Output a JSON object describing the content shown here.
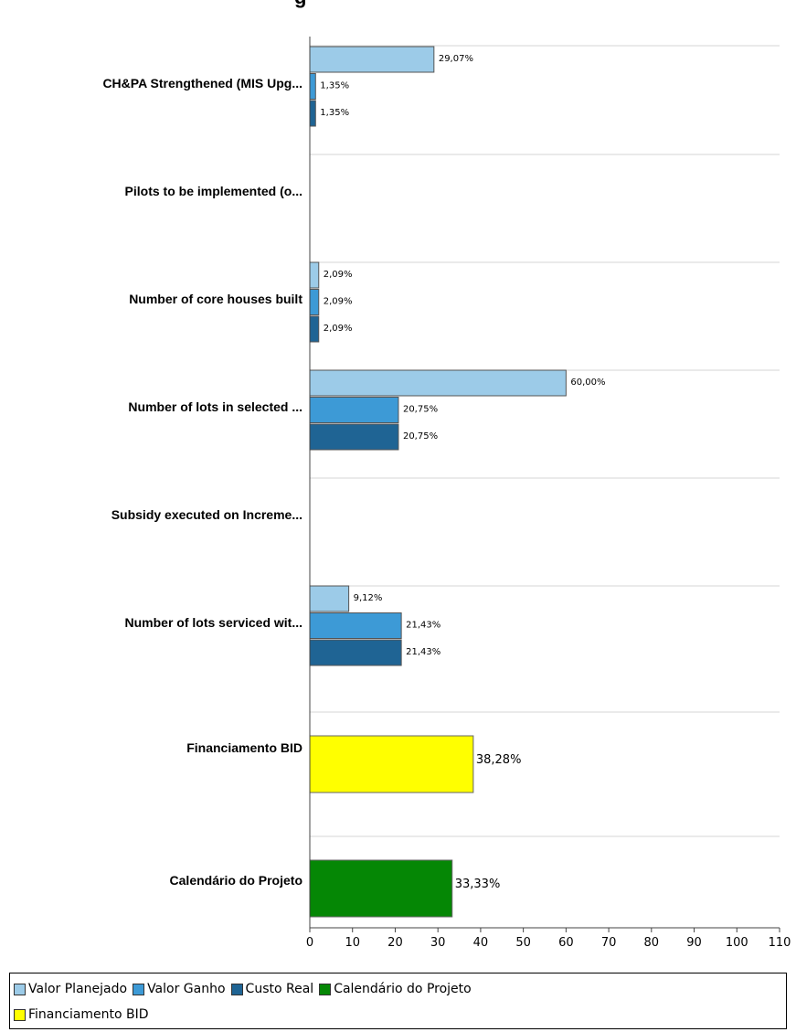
{
  "chart_data": {
    "type": "bar",
    "orientation": "horizontal",
    "title": "",
    "xlim": [
      0,
      110
    ],
    "x_ticks": [
      "0",
      "10",
      "20",
      "30",
      "40",
      "50",
      "60",
      "70",
      "80",
      "90",
      "100",
      "110"
    ],
    "grid": true,
    "legend_position": "bottom",
    "categories": [
      "CH&PA Strengthened (MIS Upg...",
      "Pilots to be implemented (o...",
      "Number of core houses built",
      "Number of lots in selected ...",
      "Subsidy executed on Increme...",
      "Number of lots serviced wit...",
      "Financiamento BID",
      "Calendário do Projeto"
    ],
    "series": [
      {
        "name": "Valor Planejado",
        "color": "#9ccbe8",
        "values": [
          29.07,
          null,
          2.09,
          60.0,
          null,
          9.12,
          null,
          null
        ],
        "labels": [
          "29,07%",
          "",
          "2,09%",
          "60,00%",
          "",
          "9,12%",
          "",
          ""
        ]
      },
      {
        "name": "Valor Ganho",
        "color": "#3d9ad6",
        "values": [
          1.35,
          null,
          2.09,
          20.75,
          null,
          21.43,
          null,
          null
        ],
        "labels": [
          "1,35%",
          "",
          "2,09%",
          "20,75%",
          "",
          "21,43%",
          "",
          ""
        ]
      },
      {
        "name": "Custo Real",
        "color": "#1f6494",
        "values": [
          1.35,
          null,
          2.09,
          20.75,
          null,
          21.43,
          null,
          null
        ],
        "labels": [
          "1,35%",
          "",
          "2,09%",
          "20,75%",
          "",
          "21,43%",
          "",
          ""
        ]
      },
      {
        "name": "Calendário do Projeto",
        "color": "#058705",
        "values": [
          null,
          null,
          null,
          null,
          null,
          null,
          null,
          33.33
        ],
        "labels": [
          "",
          "",
          "",
          "",
          "",
          "",
          "",
          "33,33%"
        ]
      },
      {
        "name": "Financiamento BID",
        "color": "#ffff00",
        "values": [
          null,
          null,
          null,
          null,
          null,
          null,
          38.28,
          null
        ],
        "labels": [
          "",
          "",
          "",
          "",
          "",
          "",
          "38,28%",
          ""
        ]
      }
    ]
  },
  "legend": {
    "rows": [
      [
        {
          "label": "Valor Planejado",
          "color": "#9ccbe8"
        },
        {
          "label": "Valor Ganho",
          "color": "#3d9ad6"
        },
        {
          "label": "Custo Real",
          "color": "#1f6494"
        },
        {
          "label": "Calendário do Projeto",
          "color": "#058705"
        }
      ],
      [
        {
          "label": "Financiamento BID",
          "color": "#ffff00"
        }
      ]
    ]
  }
}
